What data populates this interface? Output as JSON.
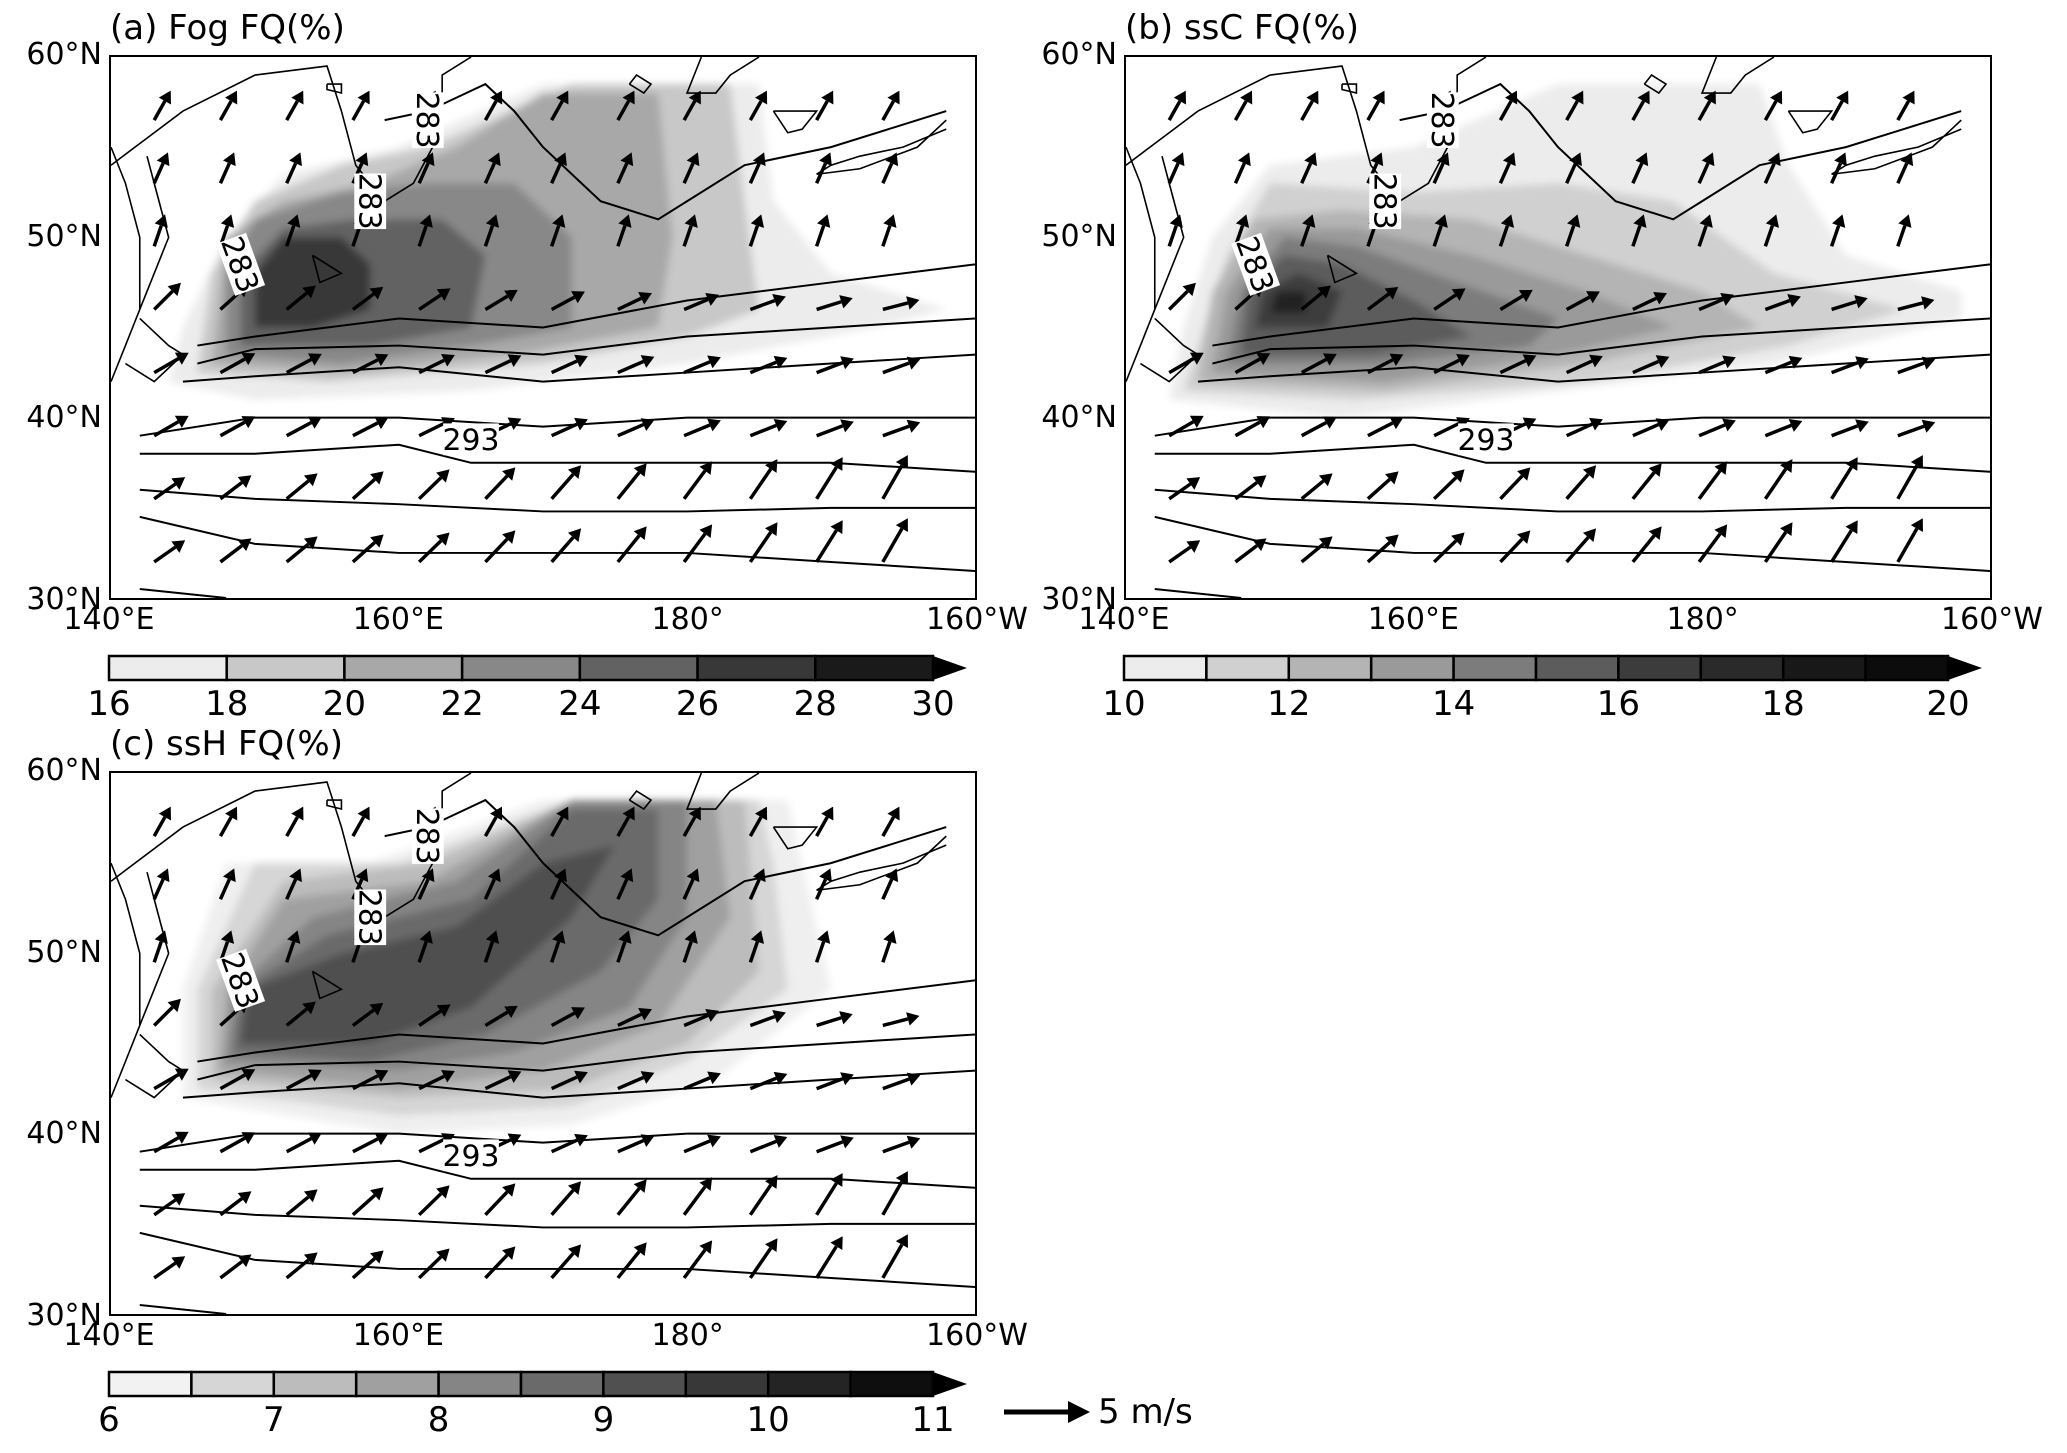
{
  "map": {
    "lon_range": [
      "140°E",
      "160°W"
    ],
    "lat_range": [
      "30°N",
      "60°N"
    ],
    "lat_labels": [
      "60°N",
      "50°N",
      "40°N",
      "30°N"
    ],
    "lon_labels": [
      "140°E",
      "160°E",
      "180°",
      "160°W"
    ],
    "contour_labels": [
      "283",
      "283",
      "283",
      "293"
    ],
    "contour_color": "#000000",
    "shading": "greyscale"
  },
  "panels": [
    {
      "id": "a",
      "title": "(a) Fog FQ(%)",
      "colorbar_ticks": [
        "16",
        "18",
        "20",
        "22",
        "24",
        "26",
        "28",
        "30"
      ],
      "colorbar_levels": [
        16,
        18,
        20,
        22,
        24,
        26,
        28,
        30
      ],
      "extend": "max"
    },
    {
      "id": "b",
      "title": "(b) ssC FQ(%)",
      "colorbar_ticks": [
        "10",
        "12",
        "14",
        "16",
        "18",
        "20"
      ],
      "colorbar_levels": [
        10,
        11,
        12,
        13,
        14,
        15,
        16,
        17,
        18,
        19,
        20
      ],
      "extend": "max"
    },
    {
      "id": "c",
      "title": "(c) ssH FQ(%)",
      "colorbar_ticks": [
        "6",
        "7",
        "8",
        "9",
        "10",
        "11"
      ],
      "colorbar_levels": [
        6,
        6.5,
        7,
        7.5,
        8,
        8.5,
        9,
        9.5,
        10,
        10.5,
        11
      ],
      "extend": "max"
    }
  ],
  "reference_vector": {
    "label": "5 m/s",
    "icon": "arrow-right-icon"
  }
}
